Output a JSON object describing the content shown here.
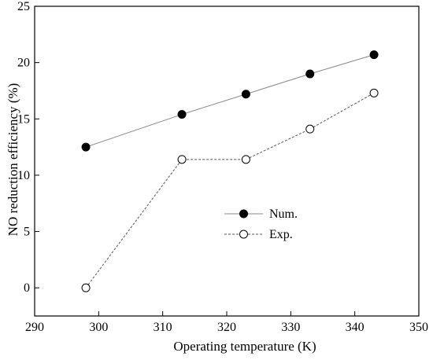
{
  "chart_data": {
    "type": "line",
    "xlabel": "Operating temperature (K)",
    "ylabel": "NO reduction efficiency (%)",
    "xlim": [
      290,
      350
    ],
    "ylim": [
      -2.5,
      25
    ],
    "xticks": [
      290,
      300,
      310,
      320,
      330,
      340,
      350
    ],
    "yticks": [
      0,
      5,
      10,
      15,
      20,
      25
    ],
    "grid": false,
    "legend_position": "center-right",
    "series": [
      {
        "name": "Num.",
        "x": [
          298,
          313,
          323,
          333,
          343
        ],
        "y": [
          12.5,
          15.4,
          17.2,
          19.0,
          20.7
        ],
        "marker": "filled-circle",
        "line": "solid",
        "color": "#000000",
        "line_color": "#888888"
      },
      {
        "name": "Exp.",
        "x": [
          298,
          313,
          323,
          333,
          343
        ],
        "y": [
          0,
          11.4,
          11.4,
          14.1,
          17.3
        ],
        "marker": "open-circle",
        "line": "dashed",
        "color": "#000000",
        "line_color": "#555555"
      }
    ]
  }
}
